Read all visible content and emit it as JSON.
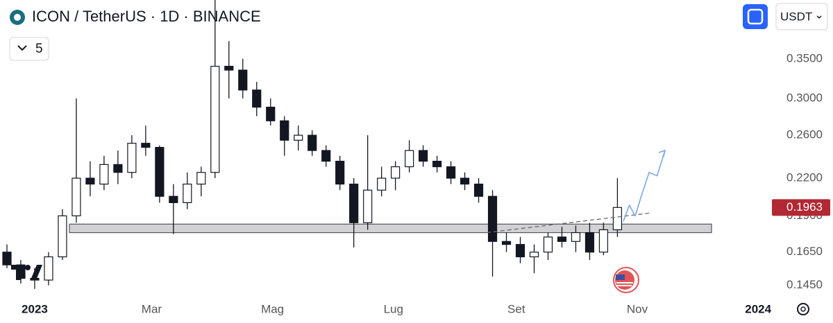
{
  "chart_data": {
    "type": "candlestick",
    "title": "ICON / TetherUS · 1D · BINANCE",
    "indicator_count": "5",
    "currency": "USDT",
    "color": "#131722",
    "log_scale": true,
    "x": [
      -14,
      -7,
      0,
      7,
      14,
      21,
      28,
      35,
      42,
      49,
      56,
      63,
      70,
      77,
      84,
      91,
      98,
      105,
      112,
      119,
      126,
      133,
      140,
      147,
      154,
      161,
      168,
      175,
      182,
      189,
      196,
      203,
      210,
      217,
      224,
      231,
      238,
      245,
      252,
      259,
      266,
      273,
      280,
      287,
      294
    ],
    "open": [
      0.165,
      0.157,
      0.149,
      0.148,
      0.162,
      0.19,
      0.22,
      0.215,
      0.232,
      0.225,
      0.252,
      0.248,
      0.205,
      0.2,
      0.215,
      0.225,
      0.34,
      0.335,
      0.31,
      0.29,
      0.275,
      0.255,
      0.26,
      0.245,
      0.235,
      0.215,
      0.185,
      0.21,
      0.22,
      0.23,
      0.245,
      0.235,
      0.23,
      0.22,
      0.215,
      0.205,
      0.172,
      0.17,
      0.162,
      0.165,
      0.175,
      0.172,
      0.178,
      0.165,
      0.18
    ],
    "high": [
      0.17,
      0.16,
      0.155,
      0.165,
      0.195,
      0.3,
      0.235,
      0.24,
      0.245,
      0.26,
      0.27,
      0.25,
      0.215,
      0.225,
      0.23,
      0.44,
      0.375,
      0.35,
      0.32,
      0.3,
      0.28,
      0.27,
      0.265,
      0.25,
      0.24,
      0.22,
      0.26,
      0.23,
      0.235,
      0.255,
      0.25,
      0.24,
      0.235,
      0.225,
      0.22,
      0.21,
      0.178,
      0.175,
      0.17,
      0.178,
      0.182,
      0.183,
      0.185,
      0.185,
      0.22
    ],
    "low": [
      0.155,
      0.146,
      0.143,
      0.145,
      0.16,
      0.185,
      0.205,
      0.21,
      0.215,
      0.22,
      0.24,
      0.2,
      0.177,
      0.195,
      0.205,
      0.22,
      0.3,
      0.3,
      0.28,
      0.27,
      0.24,
      0.245,
      0.24,
      0.23,
      0.21,
      0.168,
      0.18,
      0.205,
      0.21,
      0.225,
      0.23,
      0.225,
      0.215,
      0.21,
      0.2,
      0.15,
      0.165,
      0.158,
      0.152,
      0.16,
      0.168,
      0.165,
      0.16,
      0.163,
      0.175
    ],
    "close": [
      0.157,
      0.149,
      0.148,
      0.162,
      0.19,
      0.22,
      0.215,
      0.232,
      0.225,
      0.252,
      0.248,
      0.205,
      0.2,
      0.215,
      0.225,
      0.34,
      0.335,
      0.31,
      0.29,
      0.275,
      0.255,
      0.26,
      0.245,
      0.235,
      0.215,
      0.185,
      0.21,
      0.22,
      0.23,
      0.245,
      0.235,
      0.23,
      0.22,
      0.215,
      0.205,
      0.172,
      0.17,
      0.162,
      0.165,
      0.175,
      0.172,
      0.178,
      0.165,
      0.18,
      0.1963
    ],
    "last_price": {
      "value": 0.1963,
      "label": "0.1963",
      "color": "#b22833"
    },
    "zone": [
      0.178,
      0.184
    ],
    "trendline": {
      "x": [
        228,
        310
      ],
      "y": [
        0.178,
        0.192
      ]
    },
    "projection": {
      "color": "#7aa6e0",
      "x": [
        297,
        300,
        303,
        306,
        310,
        314,
        318
      ],
      "y": [
        0.186,
        0.198,
        0.19,
        0.205,
        0.225,
        0.222,
        0.245
      ]
    },
    "xlim": [
      -17.5,
      369.5
    ],
    "ylim": [
      0.138,
      0.44
    ],
    "xticks": [
      {
        "value": 0,
        "label": "2023"
      },
      {
        "value": 59,
        "label": "Mar"
      },
      {
        "value": 120,
        "label": "Mag"
      },
      {
        "value": 181,
        "label": "Lug"
      },
      {
        "value": 243,
        "label": "Set"
      },
      {
        "value": 304,
        "label": "Nov"
      },
      {
        "value": 365,
        "label": "2024"
      }
    ],
    "yticks": [
      {
        "value": 0.145,
        "label": "0.1450"
      },
      {
        "value": 0.165,
        "label": "0.1650"
      },
      {
        "value": 0.19,
        "label": "0.1900"
      },
      {
        "value": 0.22,
        "label": "0.2200"
      },
      {
        "value": 0.26,
        "label": "0.2600"
      },
      {
        "value": 0.3,
        "label": "0.3000"
      },
      {
        "value": 0.35,
        "label": "0.3500"
      }
    ]
  }
}
